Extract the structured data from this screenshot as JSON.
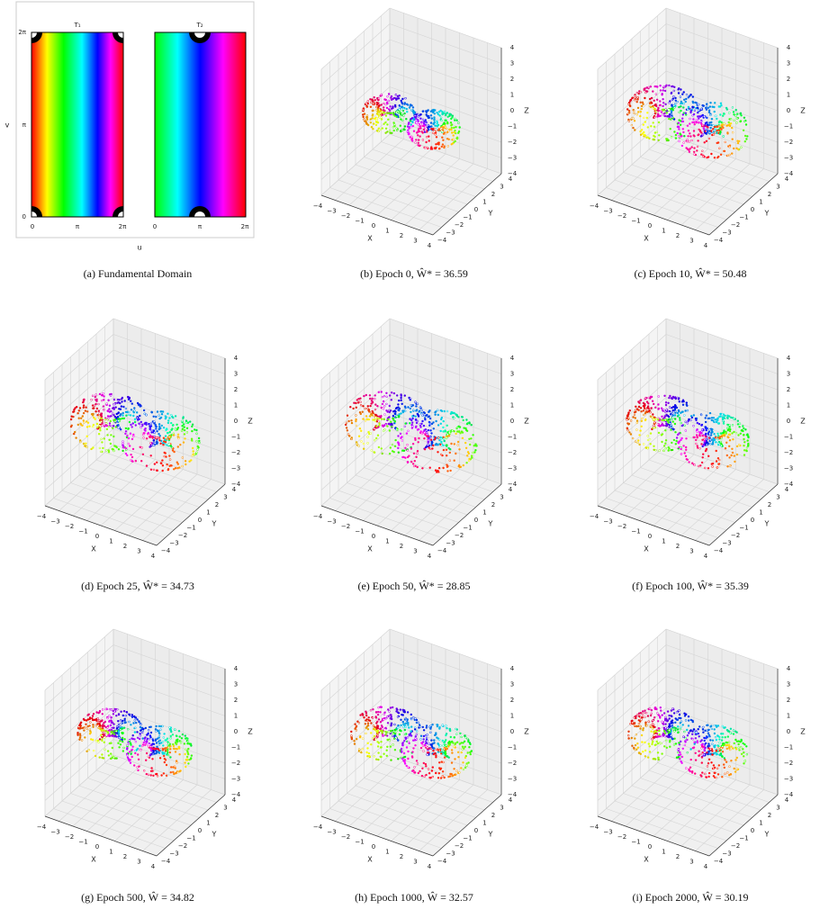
{
  "panel_a": {
    "caption": "(a) Fundamental Domain",
    "titles": [
      "T₁",
      "T₂"
    ],
    "xlabel": "u",
    "ylabel": "v",
    "xticks": [
      "0",
      "π",
      "2π"
    ],
    "yticks": [
      "0",
      "π",
      "2π"
    ]
  },
  "axes3d": {
    "xlabel": "X",
    "ylabel": "Y",
    "zlabel": "Z",
    "ticks": [
      "−4",
      "−3",
      "−2",
      "−1",
      "0",
      "1",
      "2",
      "3",
      "4"
    ]
  },
  "panels": [
    {
      "caption": "(b) Epoch 0, Ŵ* = 36.59"
    },
    {
      "caption": "(c) Epoch 10, Ŵ* = 50.48"
    },
    {
      "caption": "(d) Epoch 25, Ŵ* = 34.73"
    },
    {
      "caption": "(e) Epoch 50, Ŵ* = 28.85"
    },
    {
      "caption": "(f) Epoch 100, Ŵ* = 35.39"
    },
    {
      "caption": "(g) Epoch 500, Ŵ = 34.82"
    },
    {
      "caption": "(h) Epoch 1000, Ŵ = 32.57"
    },
    {
      "caption": "(i) Epoch 2000, Ŵ = 30.19"
    }
  ]
}
